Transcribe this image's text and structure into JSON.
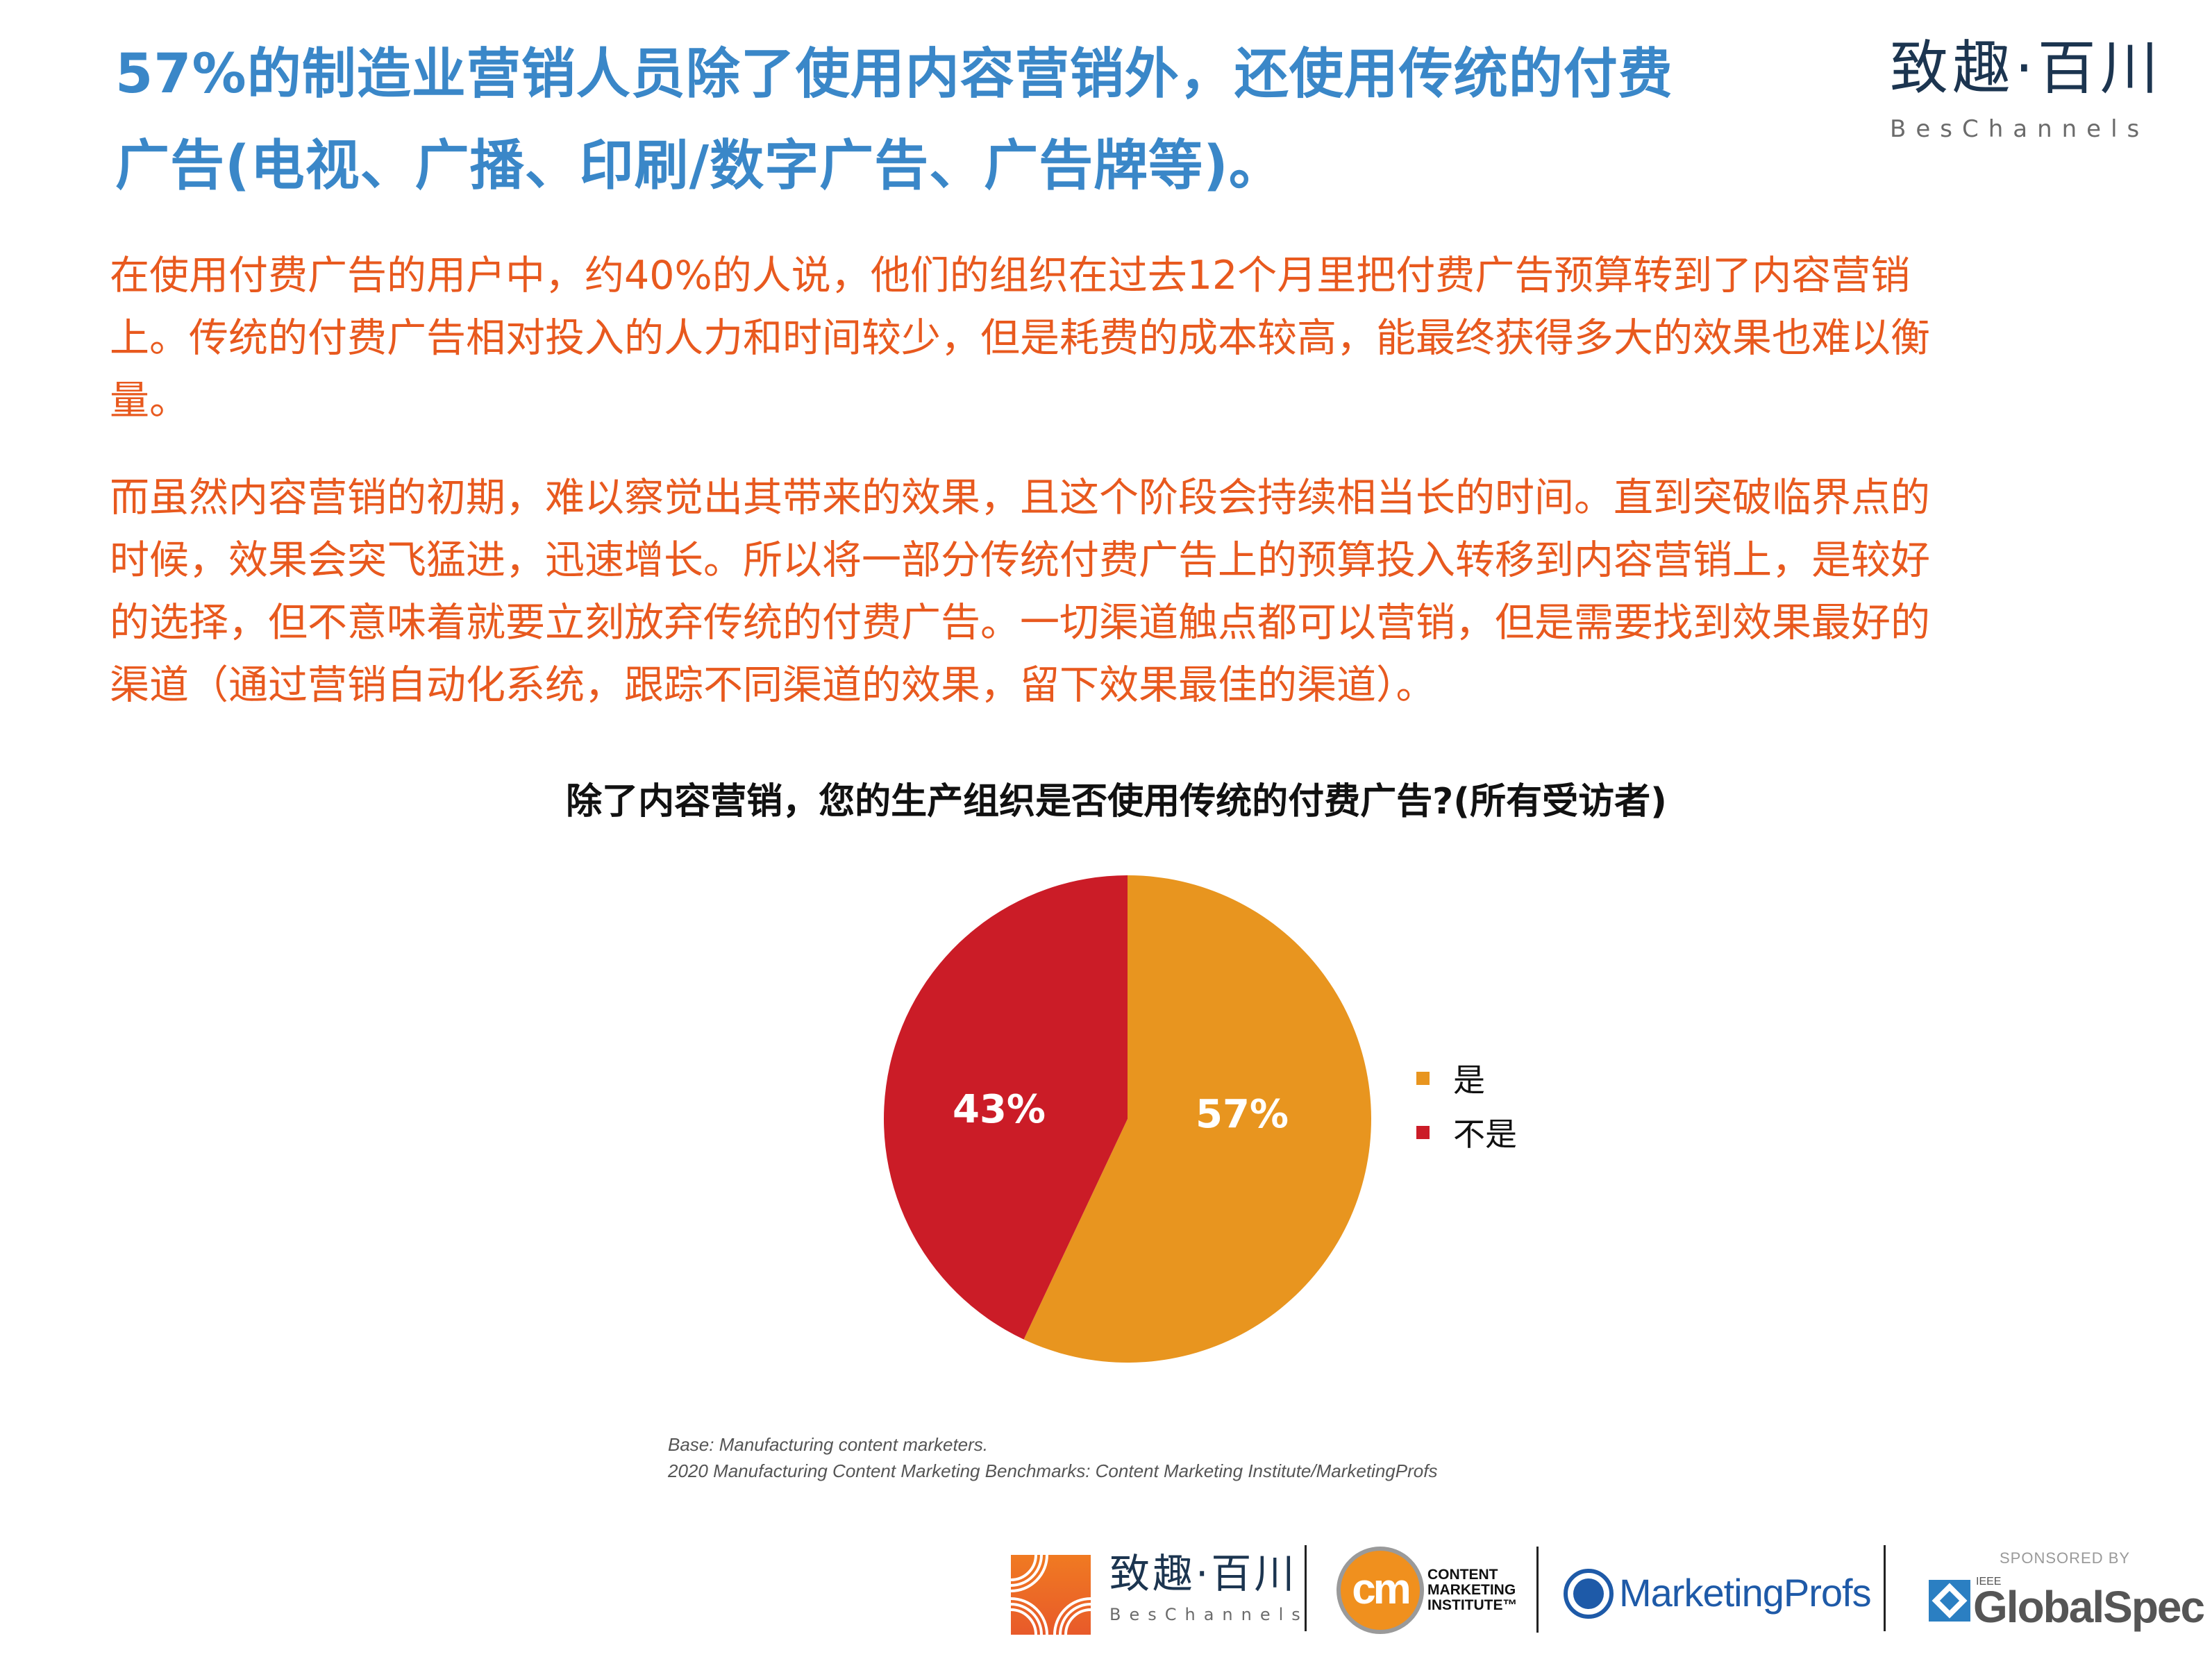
{
  "header": {
    "title_lines": [
      "57%的制造业营销人员除了使用内容营销外，还使用传统的付费",
      "广告(电视、广播、印刷/数字广告、广告牌等)。"
    ],
    "logo": {
      "cn": "致趣·百川",
      "en": "BesChannels"
    }
  },
  "body": {
    "paragraph1_lines": [
      "在使用付费广告的用户中，约40%的人说，他们的组织在过去12个月里把付费广告预算转到了内容营销",
      "上。传统的付费广告相对投入的人力和时间较少，但是耗费的成本较高，能最终获得多大的效果也难以衡",
      "量。"
    ],
    "paragraph2_lines": [
      "而虽然内容营销的初期，难以察觉出其带来的效果，且这个阶段会持续相当长的时间。直到突破临界点的",
      "时候，效果会突飞猛进，迅速增长。所以将一部分传统付费广告上的预算投入转移到内容营销上，是较好",
      "的选择，但不意味着就要立刻放弃传统的付费广告。一切渠道触点都可以营销，但是需要找到效果最好的",
      "渠道（通过营销自动化系统，跟踪不同渠道的效果，留下效果最佳的渠道）。"
    ]
  },
  "chart_data": {
    "type": "pie",
    "title": "除了内容营销，您的生产组织是否使用传统的付费广告?(所有受访者)",
    "categories": [
      "是",
      "不是"
    ],
    "values": [
      57,
      43
    ],
    "labels": [
      "57%",
      "43%"
    ],
    "colors": [
      "#E8951F",
      "#CB1C27"
    ],
    "start_angle_deg": 0,
    "direction": "clockwise",
    "legend_position": "right"
  },
  "notes": {
    "base": "Base: Manufacturing content marketers.",
    "source": "2020 Manufacturing Content Marketing Benchmarks: Content Marketing Institute/MarketingProfs"
  },
  "footer": {
    "beschannels": {
      "cn": "致趣·百川",
      "en": "BesChannels"
    },
    "cmi": {
      "mark": "cm",
      "lines": [
        "CONTENT",
        "MARKETING",
        "INSTITUTE™"
      ]
    },
    "marketingprofs": "MarketingProfs",
    "sponsored_by": "SPONSORED BY",
    "globalspec": {
      "ieee": "IEEE",
      "name": "GlobalSpec"
    }
  },
  "colors": {
    "title": "#3A87C8",
    "body_text": "#E8591E",
    "yes": "#E8951F",
    "no": "#CB1C27"
  }
}
